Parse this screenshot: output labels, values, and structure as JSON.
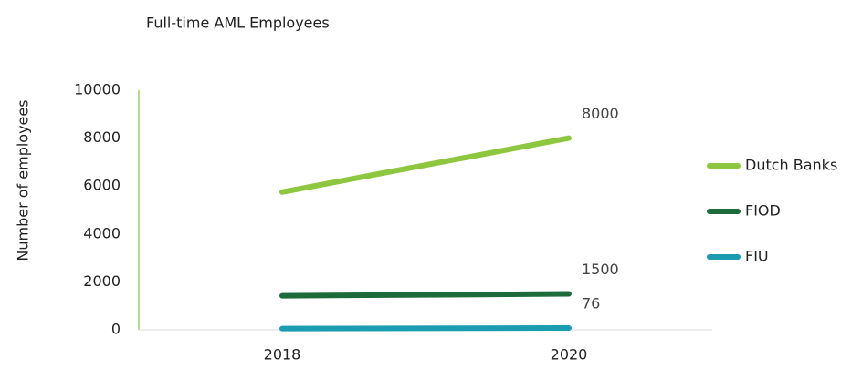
{
  "chart_data": {
    "type": "line",
    "title": "Full-time AML Employees",
    "y_label": "Number of employees",
    "categories": [
      "2018",
      "2020"
    ],
    "series": [
      {
        "name": "Dutch Banks",
        "color": "#8dc63f",
        "values": [
          5750,
          8000
        ]
      },
      {
        "name": "FIOD",
        "color": "#1d6b3b",
        "values": [
          1420,
          1500
        ]
      },
      {
        "name": "FIU",
        "color": "#1b9cb1",
        "values": [
          50,
          76
        ]
      }
    ],
    "ylim": [
      0,
      10000
    ],
    "yticks": [
      0,
      2000,
      4000,
      6000,
      8000,
      10000
    ],
    "grid": false,
    "legend": "right",
    "axis_color": "#9fd36a"
  }
}
